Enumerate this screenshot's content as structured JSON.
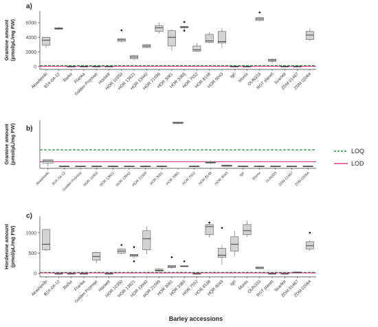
{
  "figure": {
    "xlabel": "Barley accessions",
    "legend": {
      "position": "right-middle",
      "entries": [
        {
          "name": "LOQ",
          "color": "#1a8f3c",
          "style": "dashed"
        },
        {
          "name": "LOD",
          "color": "#e0389a",
          "style": "solid"
        }
      ]
    }
  },
  "chart_data": [
    {
      "type": "boxplot",
      "panel": "a)",
      "ylabel_lines": [
        "Gramine amount",
        "(pmol/µL/mg FW)"
      ],
      "ylim": [
        -400,
        7600
      ],
      "yticks": [
        0,
        2000,
        4000,
        6000
      ],
      "loq": 110,
      "lod": 20,
      "categories": [
        "Akashinriki",
        "B1K-04-12",
        "Barke",
        "Franka",
        "Golden Promise",
        "Hockett",
        "HOR 10350",
        "HOR 13821",
        "HOR 13942",
        "HOR 21599",
        "HOR 3081",
        "HOR 3365",
        "HOR 7552",
        "HOR 8148",
        "HOR 9043",
        "Igri",
        "Morex",
        "OUN333",
        "RGT planet",
        "Scarlett",
        "ZDM 01467",
        "ZDM 02064"
      ],
      "boxes": [
        {
          "min": 2600,
          "q1": 2900,
          "median": 3600,
          "q3": 4000,
          "max": 4100,
          "outliers": []
        },
        {
          "min": 5000,
          "q1": 5100,
          "median": 5200,
          "q3": 5300,
          "max": 5400,
          "outliers": []
        },
        {
          "min": -10,
          "q1": -5,
          "median": 0,
          "q3": 5,
          "max": 10,
          "outliers": []
        },
        {
          "min": -10,
          "q1": -5,
          "median": 0,
          "q3": 5,
          "max": 10,
          "outliers": []
        },
        {
          "min": -10,
          "q1": -5,
          "median": 0,
          "q3": 5,
          "max": 10,
          "outliers": []
        },
        {
          "min": -10,
          "q1": -5,
          "median": 0,
          "q3": 5,
          "max": 10,
          "outliers": []
        },
        {
          "min": 3300,
          "q1": 3450,
          "median": 3650,
          "q3": 3800,
          "max": 3900,
          "outliers": [
            4950
          ]
        },
        {
          "min": 900,
          "q1": 1050,
          "median": 1300,
          "q3": 1500,
          "max": 1600,
          "outliers": []
        },
        {
          "min": 2500,
          "q1": 2600,
          "median": 2800,
          "q3": 3000,
          "max": 3100,
          "outliers": []
        },
        {
          "min": 4500,
          "q1": 4800,
          "median": 5300,
          "q3": 5600,
          "max": 6000,
          "outliers": []
        },
        {
          "min": 2200,
          "q1": 2800,
          "median": 4000,
          "q3": 4900,
          "max": 5100,
          "outliers": []
        },
        {
          "min": 5000,
          "q1": 5300,
          "median": 5400,
          "q3": 5500,
          "max": 5600,
          "outliers": [
            4900,
            6100
          ]
        },
        {
          "min": 2000,
          "q1": 2100,
          "median": 2300,
          "q3": 2800,
          "max": 3200,
          "outliers": []
        },
        {
          "min": 3200,
          "q1": 3300,
          "median": 3500,
          "q3": 4400,
          "max": 4700,
          "outliers": []
        },
        {
          "min": 2600,
          "q1": 3200,
          "median": 3400,
          "q3": 4800,
          "max": 5300,
          "outliers": []
        },
        {
          "min": -10,
          "q1": -5,
          "median": 0,
          "q3": 5,
          "max": 10,
          "outliers": []
        },
        {
          "min": -10,
          "q1": -5,
          "median": 0,
          "q3": 5,
          "max": 10,
          "outliers": []
        },
        {
          "min": 6200,
          "q1": 6300,
          "median": 6500,
          "q3": 6700,
          "max": 6800,
          "outliers": [
            7400
          ]
        },
        {
          "min": 500,
          "q1": 700,
          "median": 850,
          "q3": 1000,
          "max": 1100,
          "outliers": []
        },
        {
          "min": -10,
          "q1": -5,
          "median": 0,
          "q3": 5,
          "max": 10,
          "outliers": []
        },
        {
          "min": -10,
          "q1": -5,
          "median": 0,
          "q3": 5,
          "max": 10,
          "outliers": []
        },
        {
          "min": 3500,
          "q1": 3700,
          "median": 4300,
          "q3": 4800,
          "max": 5200,
          "outliers": []
        }
      ]
    },
    {
      "type": "boxplot",
      "panel": "b)",
      "ylabel_lines": [
        "Gramine amount",
        "(pmol/µL/mg FW)"
      ],
      "ylim": [
        -3,
        70
      ],
      "yticks": [],
      "loq": 25,
      "lod": 7,
      "categories": [
        "Akashinriki",
        "B1K-04-12",
        "Golden Promise",
        "HOR 10350",
        "HOR 13821",
        "HOR 13942",
        "HOR 21599",
        "HOR 3081",
        "HOR 3365",
        "HOR 7552",
        "HOR 8148",
        "HOR 9043",
        "Igri",
        "Morex",
        "OUN333",
        "ZDM 01467",
        "ZDM 02064"
      ],
      "boxes": [
        {
          "min": 0,
          "q1": 5,
          "median": 8,
          "q3": 10,
          "max": 11,
          "outliers": []
        },
        {
          "min": -1,
          "q1": -0.5,
          "median": 0,
          "q3": 0.5,
          "max": 1,
          "outliers": []
        },
        {
          "min": -1,
          "q1": -0.5,
          "median": 0,
          "q3": 0.5,
          "max": 1,
          "outliers": []
        },
        {
          "min": -1,
          "q1": -0.5,
          "median": 0,
          "q3": 0.5,
          "max": 1,
          "outliers": []
        },
        {
          "min": -1,
          "q1": -0.5,
          "median": 0,
          "q3": 0.5,
          "max": 1,
          "outliers": []
        },
        {
          "min": -1,
          "q1": -0.5,
          "median": 0,
          "q3": 0.5,
          "max": 1,
          "outliers": []
        },
        {
          "min": -1,
          "q1": -0.5,
          "median": 0,
          "q3": 0.5,
          "max": 1,
          "outliers": []
        },
        {
          "min": -1,
          "q1": -0.5,
          "median": 0,
          "q3": 0.5,
          "max": 1,
          "outliers": []
        },
        {
          "min": 64,
          "q1": 65,
          "median": 66,
          "q3": 67,
          "max": 68,
          "outliers": []
        },
        {
          "min": -1,
          "q1": -0.5,
          "median": 0,
          "q3": 0.5,
          "max": 1,
          "outliers": []
        },
        {
          "min": 4,
          "q1": 5,
          "median": 6,
          "q3": 7,
          "max": 9,
          "outliers": []
        },
        {
          "min": -1,
          "q1": 0,
          "median": 1,
          "q3": 2,
          "max": 3,
          "outliers": []
        },
        {
          "min": -1,
          "q1": -0.5,
          "median": 0,
          "q3": 0.5,
          "max": 1,
          "outliers": []
        },
        {
          "min": -1,
          "q1": -0.5,
          "median": 0,
          "q3": 0.5,
          "max": 1,
          "outliers": []
        },
        {
          "min": -1,
          "q1": -0.5,
          "median": 0,
          "q3": 0.5,
          "max": 1,
          "outliers": []
        },
        {
          "min": -1,
          "q1": -0.5,
          "median": 0,
          "q3": 0.5,
          "max": 1,
          "outliers": []
        },
        {
          "min": -1,
          "q1": -0.5,
          "median": 0,
          "q3": 0.5,
          "max": 1,
          "outliers": []
        }
      ]
    },
    {
      "type": "boxplot",
      "panel": "c)",
      "ylabel_lines": [
        "Hordenine amount",
        "(pmol/µL/mg FW)"
      ],
      "ylim": [
        -80,
        1400
      ],
      "yticks": [
        0,
        500,
        1000
      ],
      "loq": 30,
      "lod": 15,
      "categories": [
        "Akashinriki",
        "B1K-04-12",
        "Barke",
        "Franka",
        "Golden Promise",
        "Hockett",
        "HOR 10350",
        "HOR 13821",
        "HOR 13942",
        "HOR 21599",
        "HOR 3081",
        "HOR 3365",
        "HOR 7552",
        "HOR 8148",
        "HOR 9043",
        "Igri",
        "Morex",
        "OUN333",
        "RGT planet",
        "Scarlett",
        "ZDM 01467",
        "ZDM 02064"
      ],
      "boxes": [
        {
          "min": 550,
          "q1": 580,
          "median": 720,
          "q3": 1080,
          "max": 1100,
          "outliers": []
        },
        {
          "min": -5,
          "q1": -2,
          "median": 0,
          "q3": 2,
          "max": 5,
          "outliers": []
        },
        {
          "min": -5,
          "q1": -2,
          "median": 0,
          "q3": 2,
          "max": 5,
          "outliers": []
        },
        {
          "min": -5,
          "q1": -2,
          "median": 0,
          "q3": 2,
          "max": 5,
          "outliers": []
        },
        {
          "min": 260,
          "q1": 330,
          "median": 420,
          "q3": 520,
          "max": 540,
          "outliers": []
        },
        {
          "min": -5,
          "q1": -2,
          "median": 0,
          "q3": 2,
          "max": 5,
          "outliers": []
        },
        {
          "min": 470,
          "q1": 500,
          "median": 550,
          "q3": 600,
          "max": 620,
          "outliers": [
            700
          ]
        },
        {
          "min": 380,
          "q1": 420,
          "median": 450,
          "q3": 470,
          "max": 480,
          "outliers": [
            300,
            650
          ]
        },
        {
          "min": 480,
          "q1": 580,
          "median": 850,
          "q3": 1050,
          "max": 1150,
          "outliers": []
        },
        {
          "min": 40,
          "q1": 60,
          "median": 80,
          "q3": 110,
          "max": 130,
          "outliers": []
        },
        {
          "min": 120,
          "q1": 150,
          "median": 170,
          "q3": 200,
          "max": 210,
          "outliers": [
            400
          ]
        },
        {
          "min": 160,
          "q1": 170,
          "median": 180,
          "q3": 190,
          "max": 200,
          "outliers": [
            300
          ]
        },
        {
          "min": -5,
          "q1": -2,
          "median": 0,
          "q3": 2,
          "max": 5,
          "outliers": []
        },
        {
          "min": 880,
          "q1": 950,
          "median": 1150,
          "q3": 1200,
          "max": 1220,
          "outliers": [
            1250
          ]
        },
        {
          "min": 220,
          "q1": 400,
          "median": 450,
          "q3": 620,
          "max": 700,
          "outliers": [
            1120
          ]
        },
        {
          "min": 420,
          "q1": 550,
          "median": 720,
          "q3": 900,
          "max": 1050,
          "outliers": []
        },
        {
          "min": 900,
          "q1": 950,
          "median": 1050,
          "q3": 1200,
          "max": 1300,
          "outliers": []
        },
        {
          "min": 110,
          "q1": 120,
          "median": 140,
          "q3": 160,
          "max": 170,
          "outliers": []
        },
        {
          "min": -5,
          "q1": -2,
          "median": 0,
          "q3": 2,
          "max": 5,
          "outliers": []
        },
        {
          "min": -5,
          "q1": -2,
          "median": 0,
          "q3": 2,
          "max": 5,
          "outliers": []
        },
        {
          "min": 10,
          "q1": 20,
          "median": 30,
          "q3": 40,
          "max": 45,
          "outliers": []
        },
        {
          "min": 550,
          "q1": 600,
          "median": 680,
          "q3": 780,
          "max": 820,
          "outliers": [
            1000
          ]
        }
      ]
    }
  ]
}
